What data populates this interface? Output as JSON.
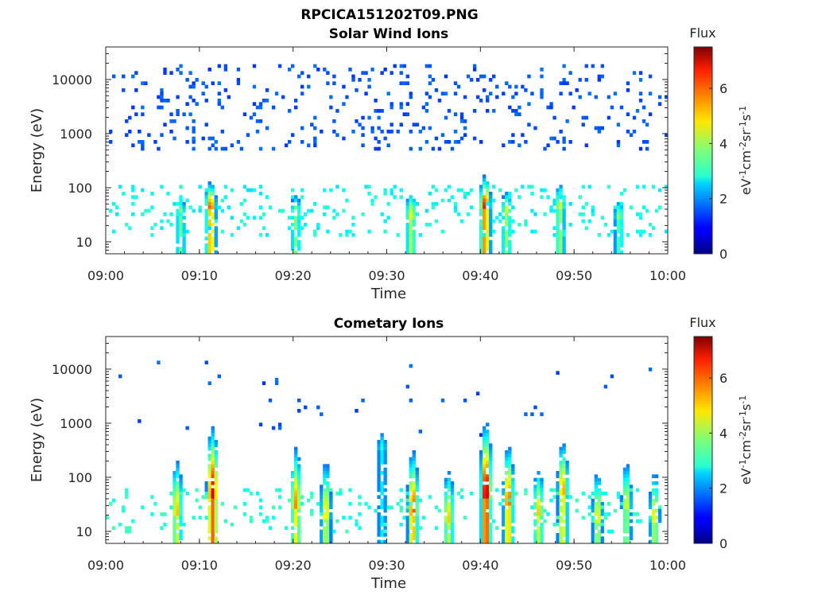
{
  "figure_title": "RPCICA151202T09.PNG",
  "colorbar": {
    "label": "Flux",
    "unit_text": "eV",
    "range": [
      0,
      7.5
    ],
    "ticks": [
      "0",
      "2",
      "4",
      "6"
    ],
    "colormap": "jet"
  },
  "chart_data": [
    {
      "type": "heatmap",
      "title": "Solar Wind Ions",
      "xlabel": "Time",
      "ylabel": "Energy (eV)",
      "x_ticks": [
        "09:00",
        "09:10",
        "09:20",
        "09:30",
        "09:40",
        "09:50",
        "10:00"
      ],
      "x_range_minutes": [
        0,
        60
      ],
      "y_ticks": [
        "10",
        "100",
        "1000",
        "10000"
      ],
      "y_scale": "log",
      "y_range": [
        6,
        40000
      ],
      "background": "#ffffff",
      "scatter": {
        "e_min": 500,
        "e_max": 20000,
        "flux": 1.3,
        "density": 1.0
      },
      "band": {
        "e_min": 12,
        "e_max": 120,
        "flux": 2.6,
        "density": 0.45
      },
      "bursts": [
        {
          "t": 11.2,
          "peak_e": 38,
          "peak_flux": 6.2,
          "top_e": 140
        },
        {
          "t": 8.0,
          "peak_e": 30,
          "peak_flux": 4.2,
          "top_e": 80
        },
        {
          "t": 20.3,
          "peak_e": 30,
          "peak_flux": 4.4,
          "top_e": 90
        },
        {
          "t": 32.6,
          "peak_e": 28,
          "peak_flux": 4.8,
          "top_e": 110
        },
        {
          "t": 40.5,
          "peak_e": 40,
          "peak_flux": 6.6,
          "top_e": 180
        },
        {
          "t": 42.8,
          "peak_e": 35,
          "peak_flux": 4.6,
          "top_e": 100
        },
        {
          "t": 48.5,
          "peak_e": 40,
          "peak_flux": 4.6,
          "top_e": 150
        },
        {
          "t": 54.8,
          "peak_e": 28,
          "peak_flux": 4.0,
          "top_e": 70
        }
      ]
    },
    {
      "type": "heatmap",
      "title": "Cometary Ions",
      "xlabel": "Time",
      "ylabel": "Energy (eV)",
      "x_ticks": [
        "09:00",
        "09:10",
        "09:20",
        "09:30",
        "09:40",
        "09:50",
        "10:00"
      ],
      "x_range_minutes": [
        0,
        60
      ],
      "y_ticks": [
        "10",
        "100",
        "1000",
        "10000"
      ],
      "y_scale": "log",
      "y_range": [
        6,
        40000
      ],
      "background": "#ffffff",
      "scatter": {
        "e_min": 500,
        "e_max": 15000,
        "flux": 1.3,
        "density": 0.1
      },
      "band": {
        "e_min": 10,
        "e_max": 60,
        "flux": 2.8,
        "density": 0.35
      },
      "bursts": [
        {
          "t": 7.6,
          "peak_e": 20,
          "peak_flux": 5.2,
          "top_e": 300
        },
        {
          "t": 11.4,
          "peak_e": 40,
          "peak_flux": 6.9,
          "top_e": 1000
        },
        {
          "t": 20.3,
          "peak_e": 25,
          "peak_flux": 5.6,
          "top_e": 500
        },
        {
          "t": 23.5,
          "peak_e": 18,
          "peak_flux": 5.0,
          "top_e": 300
        },
        {
          "t": 32.8,
          "peak_e": 20,
          "peak_flux": 6.1,
          "top_e": 400
        },
        {
          "t": 36.6,
          "peak_e": 15,
          "peak_flux": 5.1,
          "top_e": 200
        },
        {
          "t": 40.6,
          "peak_e": 40,
          "peak_flux": 7.2,
          "top_e": 1200
        },
        {
          "t": 43.0,
          "peak_e": 30,
          "peak_flux": 6.0,
          "top_e": 500
        },
        {
          "t": 46.2,
          "peak_e": 20,
          "peak_flux": 5.1,
          "top_e": 200
        },
        {
          "t": 48.8,
          "peak_e": 50,
          "peak_flux": 5.5,
          "top_e": 600
        },
        {
          "t": 52.5,
          "peak_e": 15,
          "peak_flux": 4.8,
          "top_e": 200
        },
        {
          "t": 55.6,
          "peak_e": 25,
          "peak_flux": 4.6,
          "top_e": 300
        },
        {
          "t": 58.6,
          "peak_e": 15,
          "peak_flux": 4.8,
          "top_e": 200
        },
        {
          "t": 29.5,
          "peak_e": 300,
          "peak_flux": 3.2,
          "top_e": 1000
        }
      ]
    }
  ]
}
